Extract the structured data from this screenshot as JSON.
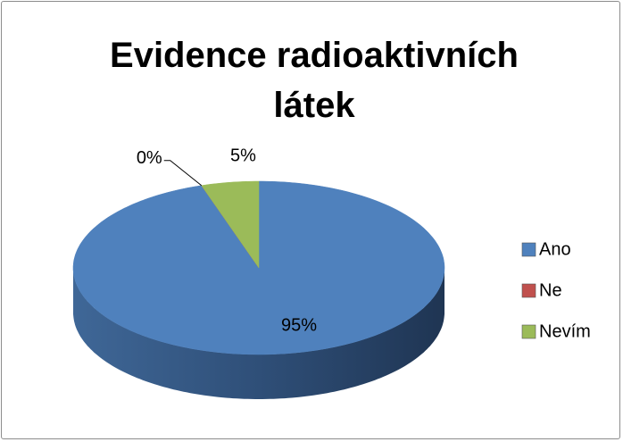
{
  "chart_data": {
    "type": "pie",
    "title": "Evidence radioaktivních látek",
    "categories": [
      "Ano",
      "Ne",
      "Nevím"
    ],
    "values": [
      95,
      0,
      5
    ],
    "value_labels": [
      "95%",
      "0%",
      "5%"
    ],
    "colors": [
      "#4f81bd",
      "#c0504d",
      "#9bbb59"
    ],
    "legend": "right"
  }
}
